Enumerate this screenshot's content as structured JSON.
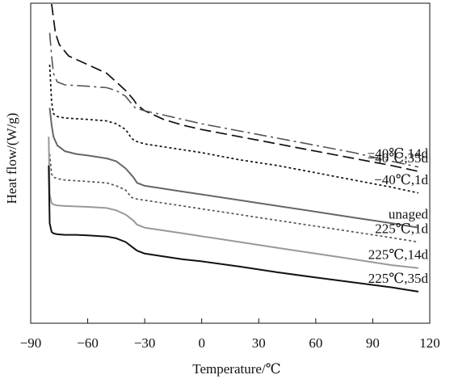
{
  "chart_data": {
    "type": "line",
    "xlabel": "Temperature/℃",
    "ylabel": "Heat flow/(W/g)",
    "xlim": [
      -90,
      120
    ],
    "ylim": [
      0,
      100
    ],
    "xticks": [
      -90,
      -60,
      -30,
      0,
      30,
      60,
      90,
      120
    ],
    "xtick_labels": [
      "−90",
      "−60",
      "−30",
      "0",
      "30",
      "60",
      "90",
      "120"
    ],
    "y_tick_labels_shown": false,
    "grid": false,
    "legend": "none (series labeled inline at right)",
    "series": [
      {
        "name": "−40℃,35d",
        "color": "#111111",
        "dash": "long-dash",
        "x": [
          -79,
          -77,
          -75,
          -70,
          -60,
          -50,
          -45,
          -40,
          -36,
          -34,
          -30,
          -20,
          -10,
          0,
          20,
          40,
          60,
          80,
          100,
          114
        ],
        "y": [
          100,
          90,
          86,
          82,
          79,
          76,
          73,
          70,
          67,
          65,
          63,
          60,
          58,
          56.5,
          54,
          51.5,
          49,
          46.5,
          44,
          42
        ]
      },
      {
        "name": "−40℃,14d",
        "color": "#555555",
        "dash": "dash-dot",
        "x": [
          -80,
          -79,
          -78,
          -76,
          -72,
          -60,
          -50,
          -45,
          -40,
          -37,
          -35,
          -30,
          -20,
          -10,
          0,
          20,
          40,
          60,
          80,
          100,
          114
        ],
        "y": [
          90,
          82,
          76,
          73,
          72,
          71.5,
          71,
          70,
          68,
          65.5,
          64,
          63,
          61.5,
          60,
          58.5,
          56,
          53.5,
          51,
          48.5,
          45.5,
          43.5
        ]
      },
      {
        "name": "−40℃,1d",
        "color": "#111111",
        "dash": "dotted",
        "x": [
          -80,
          -79,
          -78,
          -76,
          -72,
          -60,
          -50,
          -45,
          -40,
          -37,
          -35,
          -30,
          -20,
          -10,
          0,
          20,
          40,
          60,
          80,
          100,
          114
        ],
        "y": [
          79,
          66,
          62,
          61,
          60.5,
          60,
          59.5,
          58.5,
          56.5,
          53.5,
          52.5,
          51.5,
          50.5,
          49.5,
          48.5,
          46,
          44,
          41.5,
          39,
          36.5,
          34.5
        ]
      },
      {
        "name": "unaged",
        "color": "#666666",
        "dash": "solid",
        "x": [
          -80,
          -79,
          -78,
          -76,
          -72,
          -66,
          -60,
          -50,
          -45,
          -40,
          -36,
          -34,
          -30,
          -20,
          -10,
          0,
          20,
          40,
          60,
          80,
          100,
          114
        ],
        "y": [
          64,
          58,
          54,
          51,
          49,
          48,
          47.5,
          46.5,
          45.5,
          43,
          40,
          38,
          37,
          36,
          35,
          34,
          32,
          30,
          28,
          26,
          24,
          22.5
        ]
      },
      {
        "name": "225℃,1d",
        "color": "#555555",
        "dash": "dotted",
        "x": [
          -80,
          -79,
          -78,
          -76,
          -72,
          -60,
          -50,
          -45,
          -40,
          -37,
          -35,
          -30,
          -20,
          -10,
          0,
          20,
          40,
          60,
          80,
          100,
          114
        ],
        "y": [
          48,
          41,
          40,
          39.5,
          39,
          38.5,
          38,
          37,
          35.5,
          33,
          32.5,
          32,
          31,
          30,
          29,
          27,
          25,
          23,
          21,
          19,
          17.5
        ]
      },
      {
        "name": "225℃,14d",
        "color": "#999999",
        "dash": "solid",
        "x": [
          -80.5,
          -80,
          -79,
          -78,
          -76,
          -72,
          -60,
          -50,
          -45,
          -40,
          -36,
          -34,
          -30,
          -20,
          -10,
          0,
          20,
          40,
          60,
          80,
          100,
          114
        ],
        "y": [
          54,
          34,
          31,
          30.5,
          30.2,
          30,
          29.7,
          29.3,
          28.5,
          27,
          25,
          23.5,
          22.5,
          21.5,
          20.5,
          19.5,
          17.5,
          15.5,
          13.5,
          11.5,
          9.5,
          8.5
        ]
      },
      {
        "name": "225℃,35d",
        "color": "#111111",
        "dash": "solid",
        "x": [
          -80.5,
          -80,
          -79,
          -78,
          -76,
          -72,
          -66,
          -60,
          -50,
          -45,
          -40,
          -36,
          -34,
          -30,
          -20,
          -10,
          0,
          20,
          40,
          60,
          80,
          100,
          114
        ],
        "y": [
          44,
          24,
          21,
          20.5,
          20.2,
          20,
          20,
          19.8,
          19.4,
          18.8,
          17.5,
          15.5,
          14.5,
          13.5,
          12.5,
          11.5,
          10.8,
          9,
          7,
          5.2,
          3.5,
          1.8,
          0.3
        ]
      }
    ]
  }
}
